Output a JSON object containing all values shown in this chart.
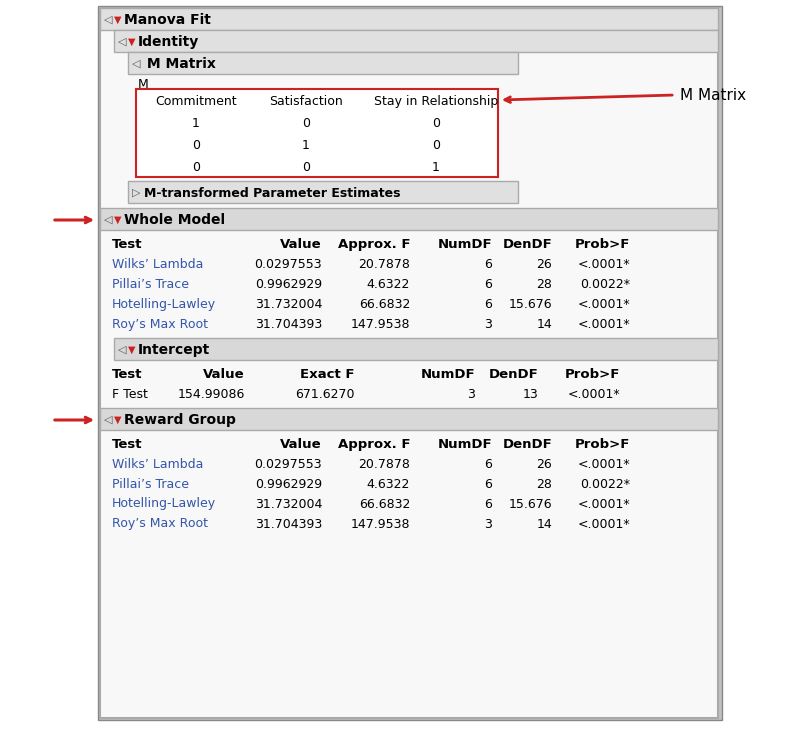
{
  "bg_color": "#ffffff",
  "outer_bg": "#f5f5f5",
  "header_bg_light": "#e8e8e8",
  "header_bg_mid": "#d8d8d8",
  "text_black": "#000000",
  "text_blue": "#3355aa",
  "text_red": "#cc2222",
  "border_outer": "#999999",
  "border_red": "#cc2222",
  "matrix_cols": [
    "Commitment",
    "Satisfaction",
    "Stay in Relationship"
  ],
  "matrix_rows": [
    [
      "1",
      "0",
      "0"
    ],
    [
      "0",
      "1",
      "0"
    ],
    [
      "0",
      "0",
      "1"
    ]
  ],
  "whole_model_headers": [
    "Test",
    "Value",
    "Approx. F",
    "NumDF",
    "DenDF",
    "Prob>F"
  ],
  "whole_model_rows": [
    [
      "Wilks’ Lambda",
      "0.0297553",
      "20.7878",
      "6",
      "26",
      "<.0001*"
    ],
    [
      "Pillai’s Trace",
      "0.9962929",
      "4.6322",
      "6",
      "28",
      "0.0022*"
    ],
    [
      "Hotelling-Lawley",
      "31.732004",
      "66.6832",
      "6",
      "15.676",
      "<.0001*"
    ],
    [
      "Roy’s Max Root",
      "31.704393",
      "147.9538",
      "3",
      "14",
      "<.0001*"
    ]
  ],
  "intercept_headers": [
    "Test",
    "Value",
    "Exact F",
    "NumDF",
    "DenDF",
    "Prob>F"
  ],
  "intercept_rows": [
    [
      "F Test",
      "154.99086",
      "671.6270",
      "3",
      "13",
      "<.0001*"
    ]
  ],
  "reward_headers": [
    "Test",
    "Value",
    "Approx. F",
    "NumDF",
    "DenDF",
    "Prob>F"
  ],
  "reward_rows": [
    [
      "Wilks’ Lambda",
      "0.0297553",
      "20.7878",
      "6",
      "26",
      "<.0001*"
    ],
    [
      "Pillai’s Trace",
      "0.9962929",
      "4.6322",
      "6",
      "28",
      "0.0022*"
    ],
    [
      "Hotelling-Lawley",
      "31.732004",
      "66.6832",
      "6",
      "15.676",
      "<.0001*"
    ],
    [
      "Roy’s Max Root",
      "31.704393",
      "147.9538",
      "3",
      "14",
      "<.0001*"
    ]
  ]
}
